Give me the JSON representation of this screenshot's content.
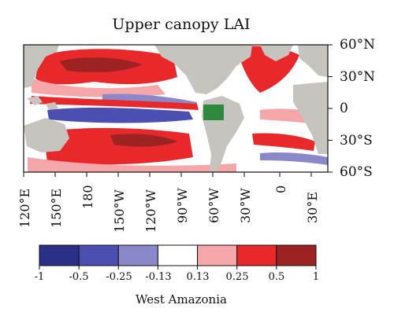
{
  "title": "Upper canopy LAI",
  "lat_labels": [
    "60°N",
    "30°N",
    "0",
    "30°S",
    "60°S"
  ],
  "lon_labels": [
    "120°E",
    "150°E",
    "180",
    "150°W",
    "120°W",
    "90°W",
    "60°W",
    "30°W",
    "0",
    "30°E"
  ],
  "colorbar": {
    "boundaries": [
      "-1",
      "-0.5",
      "-0.25",
      "-0.13",
      "0.13",
      "0.25",
      "0.5",
      "1"
    ],
    "colors": [
      "#2b2f86",
      "#4a4fb0",
      "#8a88c8",
      "#ffffff",
      "#f4a6a8",
      "#e8282a",
      "#9c2224"
    ]
  },
  "region_label": "West Amazonia",
  "colors": {
    "land": "#c7c4c0",
    "box": "#2e8b3e"
  }
}
